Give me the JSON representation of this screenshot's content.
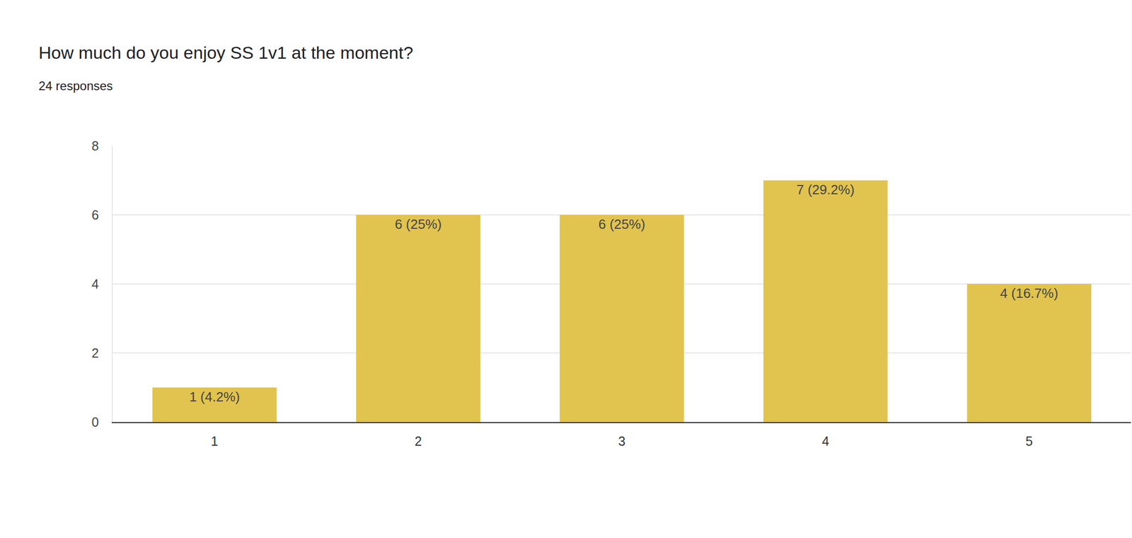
{
  "chart_data": {
    "type": "bar",
    "title": "How much do you enjoy SS 1v1 at the moment?",
    "subtitle": "24 responses",
    "categories": [
      "1",
      "2",
      "3",
      "4",
      "5"
    ],
    "values": [
      1,
      6,
      6,
      7,
      4
    ],
    "value_labels": [
      "1 (4.2%)",
      "6 (25%)",
      "6 (25%)",
      "7 (29.2%)",
      "4 (16.7%)"
    ],
    "data_labels": true,
    "color": "#e1c34f",
    "ylim": [
      0,
      8
    ],
    "yticks": [
      0,
      2,
      4,
      6,
      8
    ],
    "grid": true
  }
}
